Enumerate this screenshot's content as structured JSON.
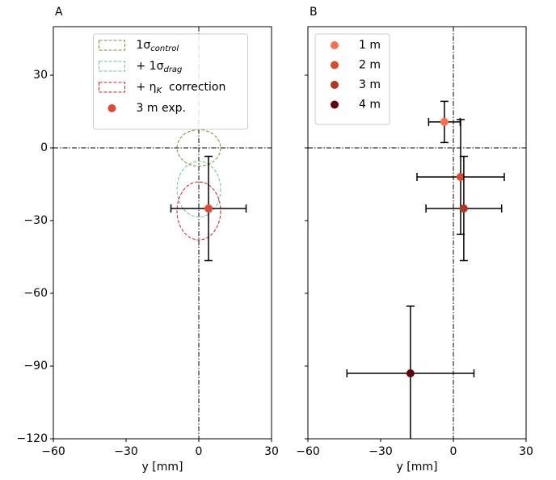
{
  "chart_data": [
    {
      "type": "scatter",
      "panel_label": "A",
      "xlabel": "y [mm]",
      "xlim": [
        -60,
        30
      ],
      "ylim": [
        -120,
        50
      ],
      "xticks": [
        {
          "value": -60,
          "label": "−60"
        },
        {
          "value": -30,
          "label": "−30"
        },
        0,
        30
      ],
      "yticks": [
        {
          "value": -120,
          "label": "−120"
        },
        {
          "value": -90,
          "label": "−90"
        },
        {
          "value": -60,
          "label": "−60"
        },
        {
          "value": -30,
          "label": "−30"
        },
        0,
        30
      ],
      "show_ytick_labels": true,
      "hlines": [
        0
      ],
      "vlines": [
        0
      ],
      "legend": "upper center",
      "ellipses": [
        {
          "name": "1σ",
          "subscript": "control",
          "color": "#77933c",
          "center_x": 0,
          "center_y": 0,
          "width": 18,
          "height": 15
        },
        {
          "name": "+ 1σ",
          "subscript": "drag",
          "color": "#66c2a5",
          "center_x": 0,
          "center_y": -17,
          "width": 18,
          "height": 23
        },
        {
          "name": "+ η",
          "subscript": "K",
          "suffix": "  correction",
          "color": "#e31a1c",
          "center_x": 0,
          "center_y": -26,
          "width": 18,
          "height": 24
        }
      ],
      "series": [
        {
          "name": "3 m exp.",
          "color": "#e34a33",
          "x": [
            4
          ],
          "y": [
            -25
          ],
          "xerr": [
            15.5
          ],
          "yerr": [
            21.5
          ]
        }
      ]
    },
    {
      "type": "scatter",
      "panel_label": "B",
      "xlabel": "y [mm]",
      "xlim": [
        -60,
        30
      ],
      "ylim": [
        -120,
        50
      ],
      "xticks": [
        {
          "value": -60,
          "label": "−60"
        },
        {
          "value": -30,
          "label": "−30"
        },
        0,
        30
      ],
      "yticks": [
        -120,
        -90,
        -60,
        -30,
        0,
        30
      ],
      "show_ytick_labels": false,
      "hlines": [
        0
      ],
      "vlines": [
        0
      ],
      "legend": "upper left",
      "series": [
        {
          "name": "1 m",
          "color": "#fc7050",
          "x": [
            -3.7
          ],
          "y": [
            10.7
          ],
          "xerr": [
            6.5
          ],
          "yerr": [
            8.5
          ]
        },
        {
          "name": "2 m",
          "color": "#dc4a2c",
          "x": [
            3
          ],
          "y": [
            -12
          ],
          "xerr": [
            18
          ],
          "yerr": [
            23.7
          ]
        },
        {
          "name": "3 m",
          "color": "#b2361f",
          "x": [
            4.3
          ],
          "y": [
            -25
          ],
          "xerr": [
            15.6
          ],
          "yerr": [
            21.5
          ]
        },
        {
          "name": "4 m",
          "color": "#67000d",
          "x": [
            -17.7
          ],
          "y": [
            -93
          ],
          "xerr": [
            26.2
          ],
          "yerr": [
            27.7
          ]
        }
      ]
    }
  ]
}
